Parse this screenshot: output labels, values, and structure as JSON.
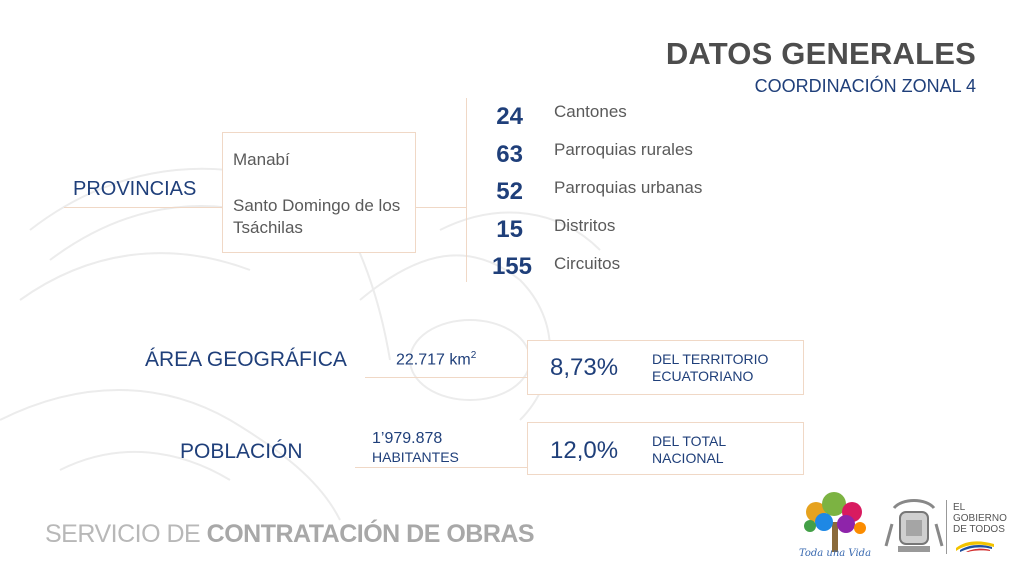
{
  "header": {
    "title": "DATOS GENERALES",
    "subtitle": "COORDINACIÓN ZONAL 4"
  },
  "provincias": {
    "label": "PROVINCIAS",
    "items": [
      "Manabí",
      "Santo Domingo de los Tsáchilas"
    ]
  },
  "stats": [
    {
      "value": "24",
      "label": "Cantones"
    },
    {
      "value": "63",
      "label": "Parroquias rurales"
    },
    {
      "value": "52",
      "label": "Parroquias urbanas"
    },
    {
      "value": "15",
      "label": "Distritos"
    },
    {
      "value": "155",
      "label": "Circuitos"
    }
  ],
  "area": {
    "label": "ÁREA GEOGRÁFICA",
    "value": "22.717 km",
    "unit_sup": "2",
    "percent": "8,73%",
    "percent_desc_1": "DEL TERRITORIO",
    "percent_desc_2": "ECUATORIANO"
  },
  "poblacion": {
    "label": "POBLACIÓN",
    "value_1": "1’979.878",
    "value_2": "HABITANTES",
    "percent": "12,0%",
    "percent_desc_1": "DEL TOTAL",
    "percent_desc_2": "NACIONAL"
  },
  "footer": {
    "brand_part_1": "SERVICIO DE",
    "brand_part_2": "CONTRATACIÓN DE OBRAS",
    "logo_1_text": "Toda una Vida",
    "logo_2_text_1": "EL",
    "logo_2_text_2": "GOBIERNO",
    "logo_2_text_3": "DE TODOS"
  },
  "colors": {
    "navy": "#1f3f7a",
    "gray_text": "#5a5a5a",
    "border": "#f0d8c6"
  }
}
